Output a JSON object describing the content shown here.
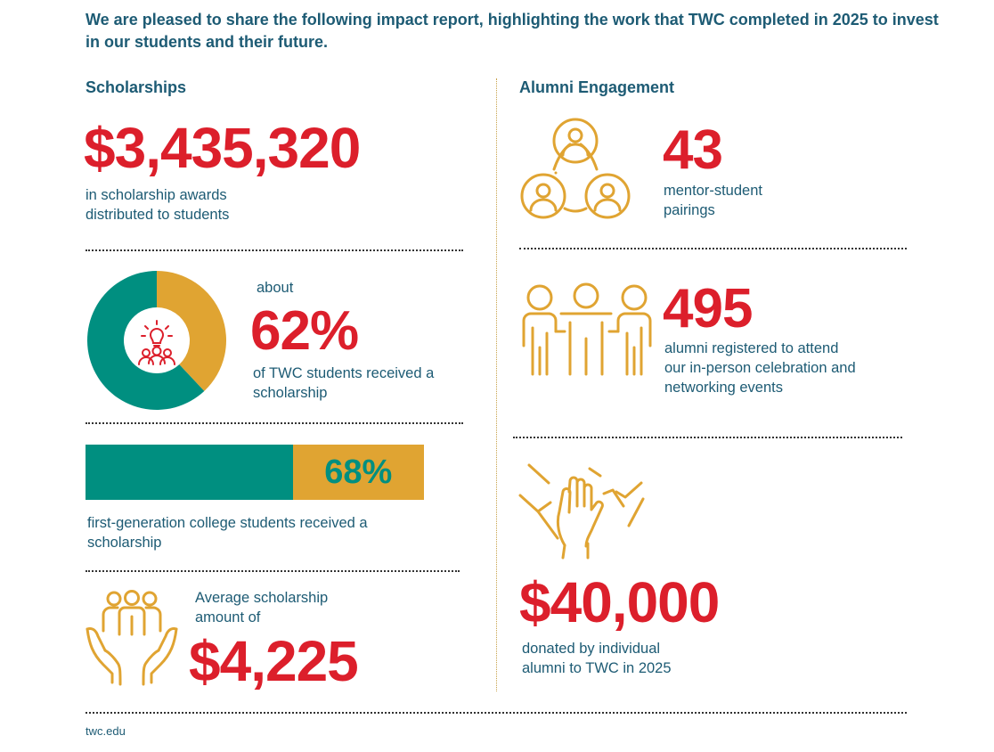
{
  "intro": "We are pleased to share the following impact report, highlighting the work that TWC completed in 2025 to invest in our students and their future.",
  "scholarships": {
    "heading": "Scholarships",
    "total_amount": "$3,435,320",
    "total_caption_line1": "in scholarship awards",
    "total_caption_line2": "distributed to students",
    "donut": {
      "prefix": "about",
      "percent_label": "62%",
      "percent_value": 62,
      "caption_line1": "of TWC students received a",
      "caption_line2": "scholarship",
      "colors": {
        "major": "#008f80",
        "minor": "#e0a432"
      }
    },
    "bar": {
      "percent_label": "68%",
      "percent_value": 68,
      "caption_line1": "first-generation college students received a",
      "caption_line2": "scholarship"
    },
    "average": {
      "caption_line1": "Average scholarship",
      "caption_line2": "amount of",
      "amount": "$4,225"
    }
  },
  "alumni": {
    "heading": "Alumni Engagement",
    "mentor": {
      "value": "43",
      "caption_line1": "mentor-student",
      "caption_line2": "pairings"
    },
    "registered": {
      "value": "495",
      "caption_line1": "alumni registered to attend",
      "caption_line2": "our in-person celebration and",
      "caption_line3": "networking events"
    },
    "donated": {
      "value": "$40,000",
      "caption_line1": "donated by individual",
      "caption_line2": "alumni to TWC in 2025"
    }
  },
  "footer": {
    "url": "twc.edu"
  },
  "colors": {
    "accent_red": "#dc1f2b",
    "navy_text": "#1d5b74",
    "teal": "#008f80",
    "gold": "#e0a432"
  },
  "icons": [
    "mentor-network-icon",
    "alumni-group-icon",
    "raised-hands-icon",
    "lightbulb-people-icon",
    "hands-holding-people-icon"
  ]
}
